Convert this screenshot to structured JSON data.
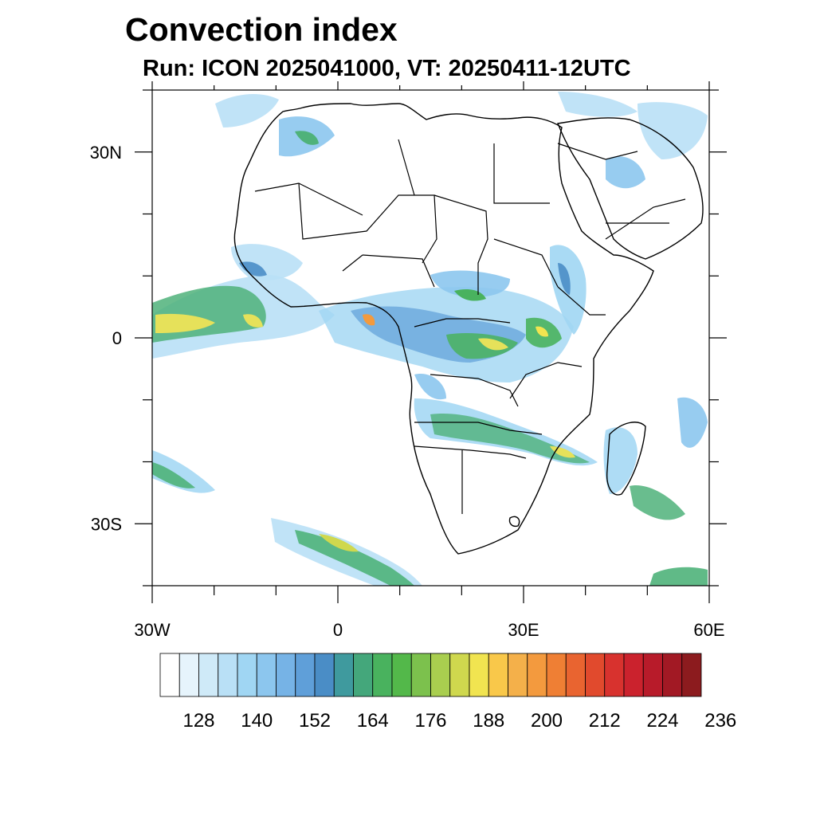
{
  "title": "Convection index",
  "subtitle": "Run: ICON 2025041000,  VT: 20250411-12UTC",
  "axes": {
    "x_ticks": [
      {
        "lon": -30,
        "label": "30W"
      },
      {
        "lon": 0,
        "label": "0"
      },
      {
        "lon": 30,
        "label": "30E"
      },
      {
        "lon": 60,
        "label": "60E"
      }
    ],
    "y_ticks": [
      {
        "lat": 30,
        "label": "30N"
      },
      {
        "lat": 0,
        "label": "0"
      },
      {
        "lat": -30,
        "label": "30S"
      }
    ],
    "lon_range": [
      -30,
      60
    ],
    "lat_range": [
      -40,
      40
    ]
  },
  "colorbar": {
    "colors": [
      "#ffffff",
      "#e6f4fc",
      "#cfeaf8",
      "#b9e0f6",
      "#a0d6f3",
      "#8cc6ee",
      "#76b3e6",
      "#5f9fd9",
      "#4a8dc6",
      "#3f9a9e",
      "#44a77b",
      "#49b25e",
      "#53b84a",
      "#7cc14d",
      "#a9ce4f",
      "#cfd84e",
      "#f1e450",
      "#f9c84a",
      "#f4b04a",
      "#f39a3e",
      "#ef7f34",
      "#e96430",
      "#e14a2d",
      "#d8322e",
      "#cb222d",
      "#b81b2a",
      "#a21924",
      "#8c1b1e"
    ],
    "labels": [
      "128",
      "140",
      "152",
      "164",
      "176",
      "188",
      "200",
      "212",
      "224",
      "236"
    ],
    "label_positions": [
      2,
      5,
      8,
      11,
      14,
      17,
      20,
      23,
      26,
      29
    ]
  },
  "features": {
    "coastline_color": "#000000",
    "border_color": "#000000"
  }
}
